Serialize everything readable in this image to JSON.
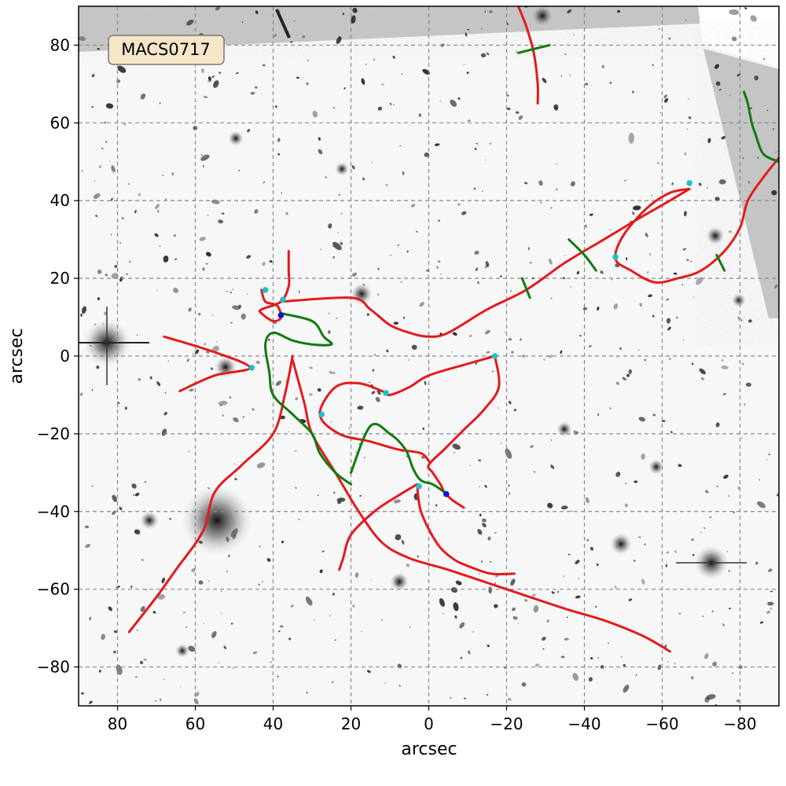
{
  "chart_data": {
    "type": "line",
    "title": "MACS0717",
    "xlabel": "arcsec",
    "ylabel": "arcsec",
    "xlim": [
      90,
      -90
    ],
    "ylim": [
      -90,
      90
    ],
    "x_ticks": [
      80,
      60,
      40,
      20,
      0,
      -20,
      -40,
      -60,
      -80
    ],
    "y_ticks": [
      80,
      60,
      40,
      20,
      0,
      -20,
      -40,
      -60,
      -80
    ],
    "grid": true,
    "background": "grayscale telescope image of galaxy cluster field",
    "colors": {
      "critical_curve": "#e31a1c",
      "caustic": "#117a11",
      "cusp_point": "#1fc3c3",
      "fold_point": "#1010dd",
      "badge_fill": "#f5e6c8"
    },
    "series": [
      {
        "kind": "critical-curve",
        "points": [
          [
            -23,
            90
          ],
          [
            -25,
            85
          ],
          [
            -27,
            78
          ],
          [
            -28,
            70
          ],
          [
            -28,
            65
          ]
        ]
      },
      {
        "kind": "critical-curve",
        "points": [
          [
            43,
            17
          ],
          [
            42,
            14
          ],
          [
            39,
            13
          ],
          [
            38,
            10
          ],
          [
            40,
            9
          ],
          [
            43,
            11
          ],
          [
            43,
            12
          ],
          [
            38,
            14
          ],
          [
            36,
            18
          ],
          [
            36,
            22
          ],
          [
            36,
            27
          ]
        ]
      },
      {
        "kind": "critical-curve",
        "points": [
          [
            38,
            14
          ],
          [
            20,
            15
          ],
          [
            15,
            12
          ],
          [
            10,
            8
          ],
          [
            5,
            6
          ],
          [
            0,
            5
          ],
          [
            -5,
            6
          ],
          [
            -15,
            12
          ],
          [
            -25,
            17
          ],
          [
            -35,
            24
          ],
          [
            -45,
            30
          ],
          [
            -55,
            36
          ],
          [
            -62,
            40
          ],
          [
            -67,
            43
          ]
        ]
      },
      {
        "kind": "critical-curve",
        "points": [
          [
            -67,
            43
          ],
          [
            -62,
            42
          ],
          [
            -56,
            38
          ],
          [
            -50,
            31
          ],
          [
            -48,
            25
          ],
          [
            -52,
            22
          ],
          [
            -58,
            19
          ],
          [
            -64,
            20
          ],
          [
            -70,
            22
          ],
          [
            -76,
            27
          ],
          [
            -80,
            33
          ],
          [
            -82,
            40
          ],
          [
            -86,
            46
          ],
          [
            -90,
            51
          ]
        ]
      },
      {
        "kind": "critical-curve",
        "points": [
          [
            68,
            5
          ],
          [
            55,
            1
          ],
          [
            46,
            -3
          ],
          [
            55,
            -5
          ],
          [
            64,
            -9
          ]
        ]
      },
      {
        "kind": "critical-curve",
        "points": [
          [
            35,
            -1
          ],
          [
            32,
            -12
          ],
          [
            30,
            -20
          ],
          [
            24,
            -30
          ],
          [
            18,
            -40
          ],
          [
            12,
            -48
          ],
          [
            5,
            -52
          ],
          [
            -5,
            -55
          ],
          [
            -20,
            -60
          ],
          [
            -35,
            -65
          ],
          [
            -45,
            -68
          ],
          [
            -55,
            -72
          ],
          [
            -62,
            -76
          ]
        ]
      },
      {
        "kind": "critical-curve",
        "points": [
          [
            35,
            0
          ],
          [
            37,
            -10
          ],
          [
            40,
            -20
          ],
          [
            48,
            -28
          ],
          [
            55,
            -35
          ],
          [
            58,
            -45
          ],
          [
            65,
            -55
          ],
          [
            70,
            -62
          ],
          [
            77,
            -71
          ]
        ]
      },
      {
        "kind": "critical-curve",
        "points": [
          [
            -17,
            0
          ],
          [
            -18,
            -8
          ],
          [
            -14,
            -14
          ],
          [
            -9,
            -19
          ],
          [
            -4,
            -24
          ],
          [
            0,
            -28
          ],
          [
            -1,
            -30
          ],
          [
            -3,
            -33
          ],
          [
            -4,
            -35
          ],
          [
            -6,
            -37
          ],
          [
            -9,
            -39
          ]
        ]
      },
      {
        "kind": "critical-curve",
        "points": [
          [
            -17,
            0
          ],
          [
            -10,
            -2
          ],
          [
            0,
            -5
          ],
          [
            5,
            -8
          ],
          [
            10,
            -10
          ],
          [
            12,
            -9
          ],
          [
            18,
            -7
          ],
          [
            24,
            -8
          ],
          [
            28,
            -15
          ],
          [
            23,
            -20
          ],
          [
            15,
            -22
          ],
          [
            8,
            -24
          ],
          [
            2,
            -25
          ],
          [
            0,
            -27
          ]
        ]
      },
      {
        "kind": "critical-curve",
        "points": [
          [
            3,
            -33
          ],
          [
            2,
            -40
          ],
          [
            -2,
            -48
          ],
          [
            -6,
            -52
          ],
          [
            -10,
            -54
          ],
          [
            -16,
            -56
          ],
          [
            -22,
            -56
          ]
        ]
      },
      {
        "kind": "critical-curve",
        "points": [
          [
            3,
            -33
          ],
          [
            8,
            -36
          ],
          [
            14,
            -40
          ],
          [
            20,
            -46
          ],
          [
            22,
            -52
          ],
          [
            23,
            -55
          ]
        ]
      },
      {
        "kind": "caustic",
        "points": [
          [
            -23,
            78
          ],
          [
            -27,
            79
          ],
          [
            -31,
            80
          ]
        ]
      },
      {
        "kind": "caustic",
        "points": [
          [
            -81,
            68
          ],
          [
            -82,
            65
          ],
          [
            -83,
            60
          ],
          [
            -84,
            57
          ],
          [
            -86,
            52
          ],
          [
            -90,
            50
          ]
        ]
      },
      {
        "kind": "caustic",
        "points": [
          [
            -36,
            30
          ],
          [
            -40,
            26
          ],
          [
            -43,
            22
          ]
        ]
      },
      {
        "kind": "caustic",
        "points": [
          [
            -74,
            26
          ],
          [
            -76,
            22
          ]
        ]
      },
      {
        "kind": "caustic",
        "points": [
          [
            -24,
            20
          ],
          [
            -26,
            15
          ]
        ]
      },
      {
        "kind": "caustic",
        "points": [
          [
            38,
            11
          ],
          [
            30,
            9
          ],
          [
            27,
            5
          ],
          [
            25,
            3
          ],
          [
            30,
            3
          ],
          [
            35,
            4
          ],
          [
            40,
            6
          ],
          [
            42,
            3
          ],
          [
            41,
            -4
          ],
          [
            40,
            -10
          ],
          [
            35,
            -15
          ],
          [
            30,
            -20
          ],
          [
            28,
            -25
          ],
          [
            24,
            -30
          ],
          [
            20,
            -33
          ]
        ]
      },
      {
        "kind": "caustic",
        "points": [
          [
            20,
            -30
          ],
          [
            15,
            -18
          ],
          [
            10,
            -20
          ],
          [
            6,
            -24
          ],
          [
            4,
            -29
          ],
          [
            2,
            -32
          ],
          [
            -1,
            -33
          ],
          [
            -4,
            -35
          ]
        ]
      }
    ],
    "markers": [
      {
        "kind": "cusp",
        "x": -67,
        "y": 44.5
      },
      {
        "kind": "cusp",
        "x": -48,
        "y": 25.5
      },
      {
        "kind": "cusp",
        "x": 42,
        "y": 17
      },
      {
        "kind": "cusp",
        "x": 37.5,
        "y": 14.5
      },
      {
        "kind": "fold",
        "x": 38,
        "y": 10.5
      },
      {
        "kind": "cusp",
        "x": 45.5,
        "y": -3
      },
      {
        "kind": "cusp",
        "x": -17,
        "y": 0
      },
      {
        "kind": "cusp",
        "x": 11,
        "y": -9.5
      },
      {
        "kind": "cusp",
        "x": 27.5,
        "y": -15
      },
      {
        "kind": "cusp",
        "x": 2.5,
        "y": -33.5
      },
      {
        "kind": "fold",
        "x": -4.5,
        "y": -35.5
      }
    ]
  }
}
